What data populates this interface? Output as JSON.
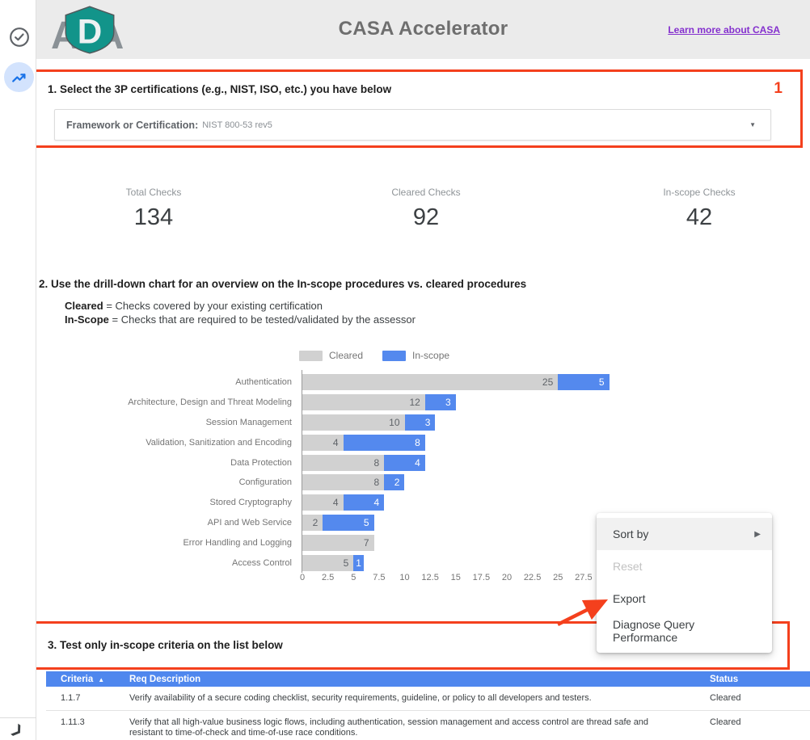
{
  "colors": {
    "annotation_red": "#f4401d",
    "bar_cleared": "#d1d1d1",
    "bar_inscope": "#5489ee",
    "table_header_blue": "#4f87ee",
    "link_purple": "#8430ce",
    "logo_teal": "#12948a",
    "logo_gray": "#8a9196",
    "rail_icon_blue": "#1a73e8",
    "rail_icon_bg": "#d3e3fd"
  },
  "sidebar": {
    "icons": [
      {
        "name": "check-circle-icon"
      },
      {
        "name": "trending-up-icon"
      }
    ],
    "collapse_chevron": "❯"
  },
  "header": {
    "title": "CASA Accelerator",
    "link_label": "Learn more about CASA",
    "logo_letters": {
      "left": "A",
      "shield": "D",
      "right": "A"
    }
  },
  "section1": {
    "badge": "1",
    "title": "1. Select the 3P certifications (e.g., NIST, ISO, etc.) you have below",
    "dropdown_label": "Framework or Certification:",
    "dropdown_value": "NIST 800-53 rev5",
    "dropdown_caret": "▼"
  },
  "metrics": [
    {
      "label": "Total Checks",
      "value": "134"
    },
    {
      "label": "Cleared Checks",
      "value": "92"
    },
    {
      "label": "In-scope Checks",
      "value": "42"
    }
  ],
  "section2": {
    "title": "2. Use the drill-down chart for an overview on the In-scope procedures vs. cleared procedures",
    "definitions": [
      {
        "term": "Cleared",
        "text": "Checks covered by your existing certification"
      },
      {
        "term": "In-Scope",
        "text": "Checks that are required to be tested/validated by the assessor"
      }
    ]
  },
  "chart_data": {
    "type": "bar",
    "orientation": "horizontal",
    "stacked": true,
    "title": "",
    "xlabel": "",
    "ylabel": "",
    "xlim": [
      0,
      30
    ],
    "x_ticks": [
      0,
      2.5,
      5,
      7.5,
      10,
      12.5,
      15,
      17.5,
      20,
      22.5,
      25,
      27.5
    ],
    "legend_position": "top",
    "categories": [
      "Authentication",
      "Architecture, Design and Threat Modeling",
      "Session Management",
      "Validation, Sanitization and Encoding",
      "Data Protection",
      "Configuration",
      "Stored Cryptography",
      "API and Web Service",
      "Error Handling and Logging",
      "Access Control"
    ],
    "series": [
      {
        "name": "Cleared",
        "color": "#d1d1d1",
        "values": [
          25,
          12,
          10,
          4,
          8,
          8,
          4,
          2,
          7,
          5
        ]
      },
      {
        "name": "In-scope",
        "color": "#5489ee",
        "values": [
          5,
          3,
          3,
          8,
          4,
          2,
          4,
          5,
          0,
          1
        ]
      }
    ]
  },
  "context_menu": {
    "items": [
      {
        "label": "Sort by",
        "disabled": false,
        "has_submenu": true,
        "highlighted": true
      },
      {
        "label": "Reset",
        "disabled": true,
        "has_submenu": false,
        "highlighted": false
      },
      {
        "label": "Export",
        "disabled": false,
        "has_submenu": false,
        "highlighted": false
      },
      {
        "label": "Diagnose Query Performance",
        "disabled": false,
        "has_submenu": false,
        "highlighted": false
      }
    ]
  },
  "section3": {
    "title": "3. Test only in-scope criteria on the list below"
  },
  "table": {
    "headers": [
      {
        "label": "Criteria",
        "sort": "asc"
      },
      {
        "label": "Req Description",
        "sort": null
      },
      {
        "label": "Status",
        "sort": null
      }
    ],
    "rows": [
      {
        "criteria": "1.1.7",
        "description": "Verify availability of a secure coding checklist, security requirements, guideline, or policy to all developers and testers.",
        "status": "Cleared"
      },
      {
        "criteria": "1.11.3",
        "description": "Verify that all high-value business logic flows, including authentication, session management and access control are thread safe and resistant to time-of-check and time-of-use race conditions.",
        "status": "Cleared"
      }
    ]
  }
}
